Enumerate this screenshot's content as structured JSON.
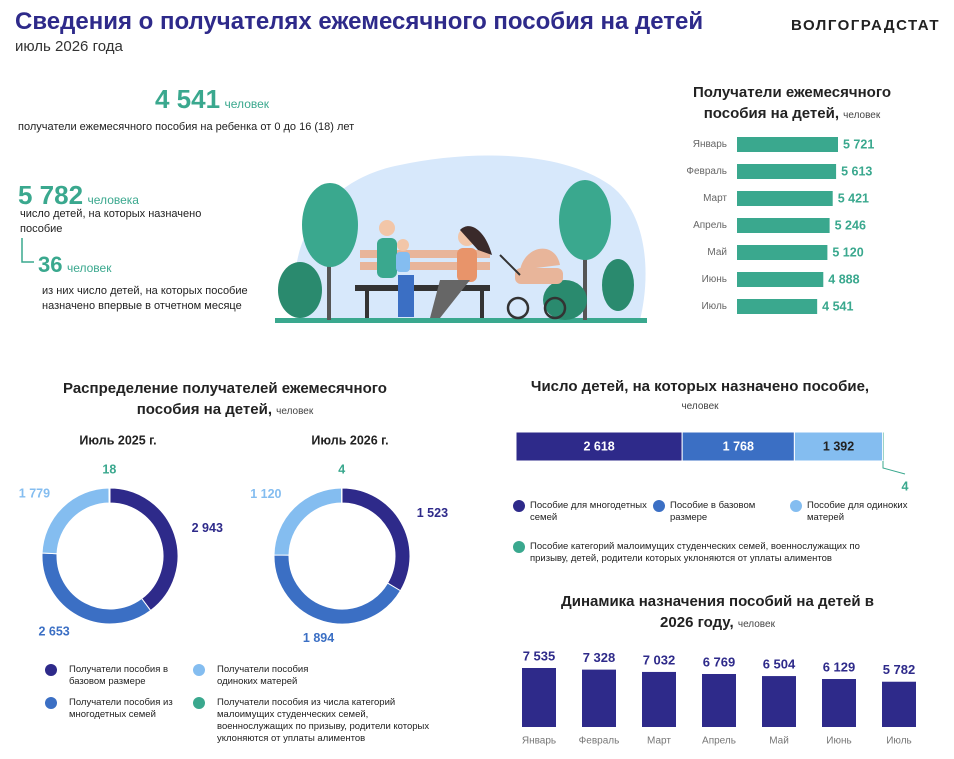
{
  "header": {
    "title": "Сведения о получателях ежемесячного пособия на детей",
    "subtitle": "июль 2026 года",
    "brand": "ВОЛГОГРАДСТАТ"
  },
  "stats": [
    {
      "value": "4 541",
      "unit": "человек",
      "label": "получатели ежемесячного пособия на ребенка от 0 до 16 (18) лет"
    },
    {
      "value": "5 782",
      "unit": "человека",
      "label": "число детей, на которых назначено пособие"
    },
    {
      "value": "36",
      "unit": "человек",
      "label": "из них число детей, на которых пособие назначено впервые в отчетном месяце"
    }
  ],
  "chart_data": [
    {
      "type": "hbar",
      "title": "Получатели ежемесячного пособия на детей,",
      "unit": "человек",
      "categories": [
        "Январь",
        "Февраль",
        "Март",
        "Апрель",
        "Май",
        "Июнь",
        "Июль"
      ],
      "values": [
        5721,
        5613,
        5421,
        5246,
        5120,
        4888,
        4541
      ],
      "value_labels": [
        "5 721",
        "5 613",
        "5 421",
        "5 246",
        "5 120",
        "4 888",
        "4 541"
      ],
      "color": "#3aa88e"
    },
    {
      "type": "donut",
      "title": "Распределение получателей ежемесячного пособия на детей,",
      "unit": "человек",
      "categories": [
        "Получатели пособия в базовом размере",
        "Получатели пособия из многодетных семей",
        "Получатели пособия одиноких матерей",
        "Получатели пособия из числа категорий малоимущих студенческих семей, военнослужащих по призыву, родители которых уклоняются от уплаты алиментов"
      ],
      "colors": [
        "#2e2a8a",
        "#3b6fc4",
        "#84bdf0",
        "#3aa88e"
      ],
      "series": [
        {
          "name": "Июль 2025 г.",
          "values": [
            2943,
            2653,
            1779,
            18
          ],
          "value_labels": [
            "2 943",
            "2 653",
            "1 779",
            "18"
          ]
        },
        {
          "name": "Июль 2026 г.",
          "values": [
            1523,
            1894,
            1120,
            4
          ],
          "value_labels": [
            "1 523",
            "1 894",
            "1 120",
            "4"
          ]
        }
      ]
    },
    {
      "type": "stacked-bar",
      "title": "Число детей, на которых назначено пособие,",
      "unit": "человек",
      "categories": [
        "Пособие для многодетных семей",
        "Пособие в базовом размере",
        "Пособие для одиноких матерей",
        "Пособие категорий малоимущих студенческих семей, военнослужащих по призыву, детей, родители которых уклоняются от уплаты алиментов"
      ],
      "colors": [
        "#2e2a8a",
        "#3b6fc4",
        "#84bdf0",
        "#3aa88e"
      ],
      "values": [
        2618,
        1768,
        1392,
        4
      ],
      "value_labels": [
        "2 618",
        "1 768",
        "1 392",
        "4"
      ]
    },
    {
      "type": "bar",
      "title": "Динамика назначения пособий на детей в 2026 году,",
      "unit": "человек",
      "categories": [
        "Январь",
        "Февраль",
        "Март",
        "Апрель",
        "Май",
        "Июнь",
        "Июль"
      ],
      "values": [
        7535,
        7328,
        7032,
        6769,
        6504,
        6129,
        5782
      ],
      "value_labels": [
        "7 535",
        "7 328",
        "7 032",
        "6 769",
        "6 504",
        "6 129",
        "5 782"
      ],
      "color": "#2e2a8a"
    }
  ]
}
